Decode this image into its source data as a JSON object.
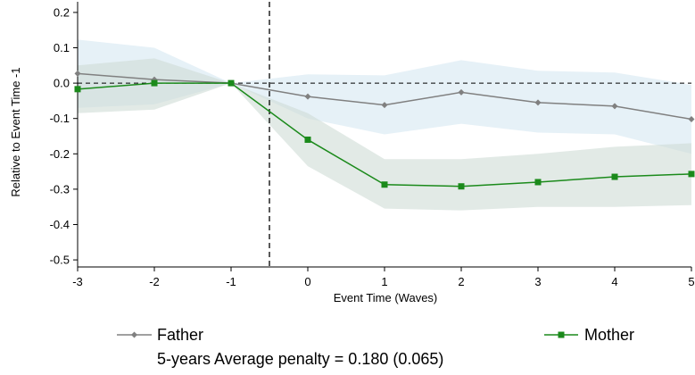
{
  "chart_data": {
    "type": "line",
    "xlabel": "Event Time (Waves)",
    "ylabel": "Relative to Event Time -1",
    "x": [
      -3,
      -2,
      -1,
      0,
      1,
      2,
      3,
      4,
      5
    ],
    "xlim": [
      -3,
      5
    ],
    "ylim": [
      -0.52,
      0.22
    ],
    "xticks": [
      "-3",
      "-2",
      "-1",
      "0",
      "1",
      "2",
      "3",
      "4",
      "5"
    ],
    "yticks": [
      "0.2",
      "0.1",
      "0.0",
      "-0.1",
      "-0.2",
      "-0.3",
      "-0.4",
      "-0.5"
    ],
    "event_line_x": -0.5,
    "reference_line_y": 0,
    "grid": false,
    "series": [
      {
        "name": "Father",
        "color": "#808080",
        "marker": "diamond",
        "values": [
          0.027,
          0.01,
          0.0,
          -0.038,
          -0.062,
          -0.026,
          -0.055,
          -0.065,
          -0.102
        ],
        "ci_lower": [
          -0.07,
          -0.06,
          0.0,
          -0.1,
          -0.145,
          -0.115,
          -0.14,
          -0.145,
          -0.2
        ],
        "ci_upper": [
          0.123,
          0.1,
          0.0,
          0.025,
          0.022,
          0.065,
          0.035,
          0.03,
          -0.005
        ],
        "band_color": "#d6e8f2"
      },
      {
        "name": "Mother",
        "color": "#1b8a1b",
        "marker": "square",
        "values": [
          -0.017,
          0.0,
          0.0,
          -0.16,
          -0.287,
          -0.292,
          -0.28,
          -0.265,
          -0.257
        ],
        "ci_lower": [
          -0.085,
          -0.075,
          0.0,
          -0.235,
          -0.355,
          -0.36,
          -0.35,
          -0.35,
          -0.345
        ],
        "ci_upper": [
          0.05,
          0.07,
          0.0,
          -0.085,
          -0.215,
          -0.215,
          -0.2,
          -0.18,
          -0.17
        ],
        "band_color": "#cfdcd6"
      }
    ],
    "legend": {
      "placement": "bottom",
      "items": [
        {
          "label": "Father",
          "color": "#808080",
          "marker": "diamond"
        },
        {
          "label": "Mother",
          "color": "#1b8a1b",
          "marker": "square"
        }
      ],
      "note": "5-years Average penalty = 0.180 (0.065)"
    }
  }
}
